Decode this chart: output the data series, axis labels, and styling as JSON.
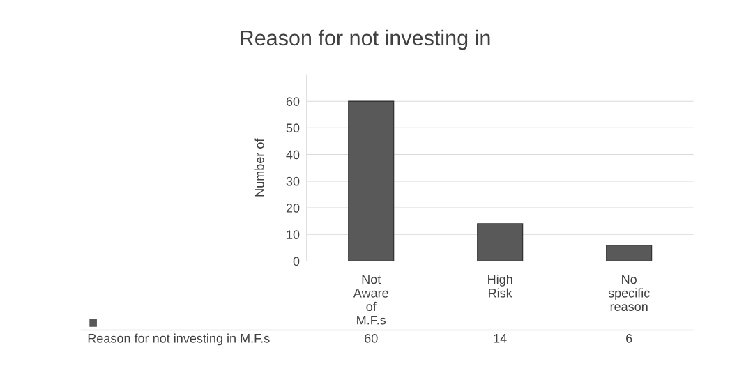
{
  "chart_data": {
    "type": "bar",
    "title": "Reason for not investing in",
    "ylabel": "Number of",
    "categories": [
      "Not Aware of M.F.s",
      "High Risk",
      "No specific reason"
    ],
    "series": [
      {
        "name": "Reason for not investing in M.F.s",
        "color": "#595959",
        "values": [
          60,
          14,
          6
        ]
      }
    ],
    "ylim": [
      0,
      70
    ],
    "yticks": [
      0,
      10,
      20,
      30,
      40,
      50,
      60
    ],
    "grid": "y",
    "data_labels": true
  }
}
